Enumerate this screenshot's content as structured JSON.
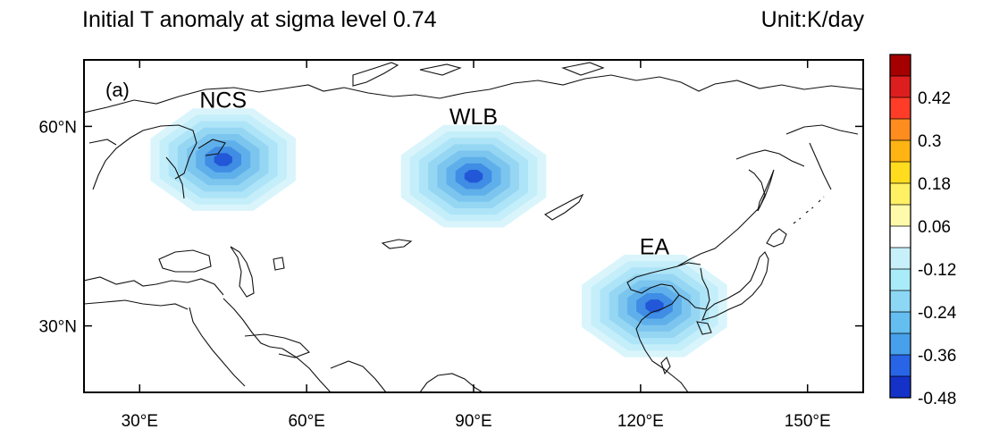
{
  "title": "Initial T anomaly at sigma level 0.74",
  "unit": "Unit:K/day",
  "panel_tag": "(a)",
  "map": {
    "lon_range": [
      20,
      160
    ],
    "lat_range": [
      20,
      70
    ],
    "x_ticks": [
      {
        "value": 30,
        "label": "30°E"
      },
      {
        "value": 60,
        "label": "60°E"
      },
      {
        "value": 90,
        "label": "90°E"
      },
      {
        "value": 120,
        "label": "120°E"
      },
      {
        "value": 150,
        "label": "150°E"
      }
    ],
    "y_ticks": [
      {
        "value": 60,
        "label": "60°N"
      },
      {
        "value": 30,
        "label": "30°N"
      }
    ],
    "regions": [
      {
        "name": "NCS",
        "lon": 45,
        "lat": 55,
        "min_value": -0.48
      },
      {
        "name": "WLB",
        "lon": 90,
        "lat": 52.5,
        "min_value": -0.48
      },
      {
        "name": "EA",
        "lon": 122.5,
        "lat": 33,
        "min_value": -0.48
      }
    ]
  },
  "colorbar": {
    "labels": [
      "0.42",
      "0.3",
      "0.18",
      "0.06",
      "-0.12",
      "-0.24",
      "-0.36",
      "-0.48"
    ],
    "colors": [
      "#a50000",
      "#dc1e1e",
      "#ff3c28",
      "#ff8c1e",
      "#ffb414",
      "#ffdc1e",
      "#fff064",
      "#fffaaa",
      "#ffffff",
      "#c8f0fa",
      "#aaebfa",
      "#8cd7f5",
      "#64bef0",
      "#46a0eb",
      "#2864e6",
      "#1432c8"
    ]
  }
}
